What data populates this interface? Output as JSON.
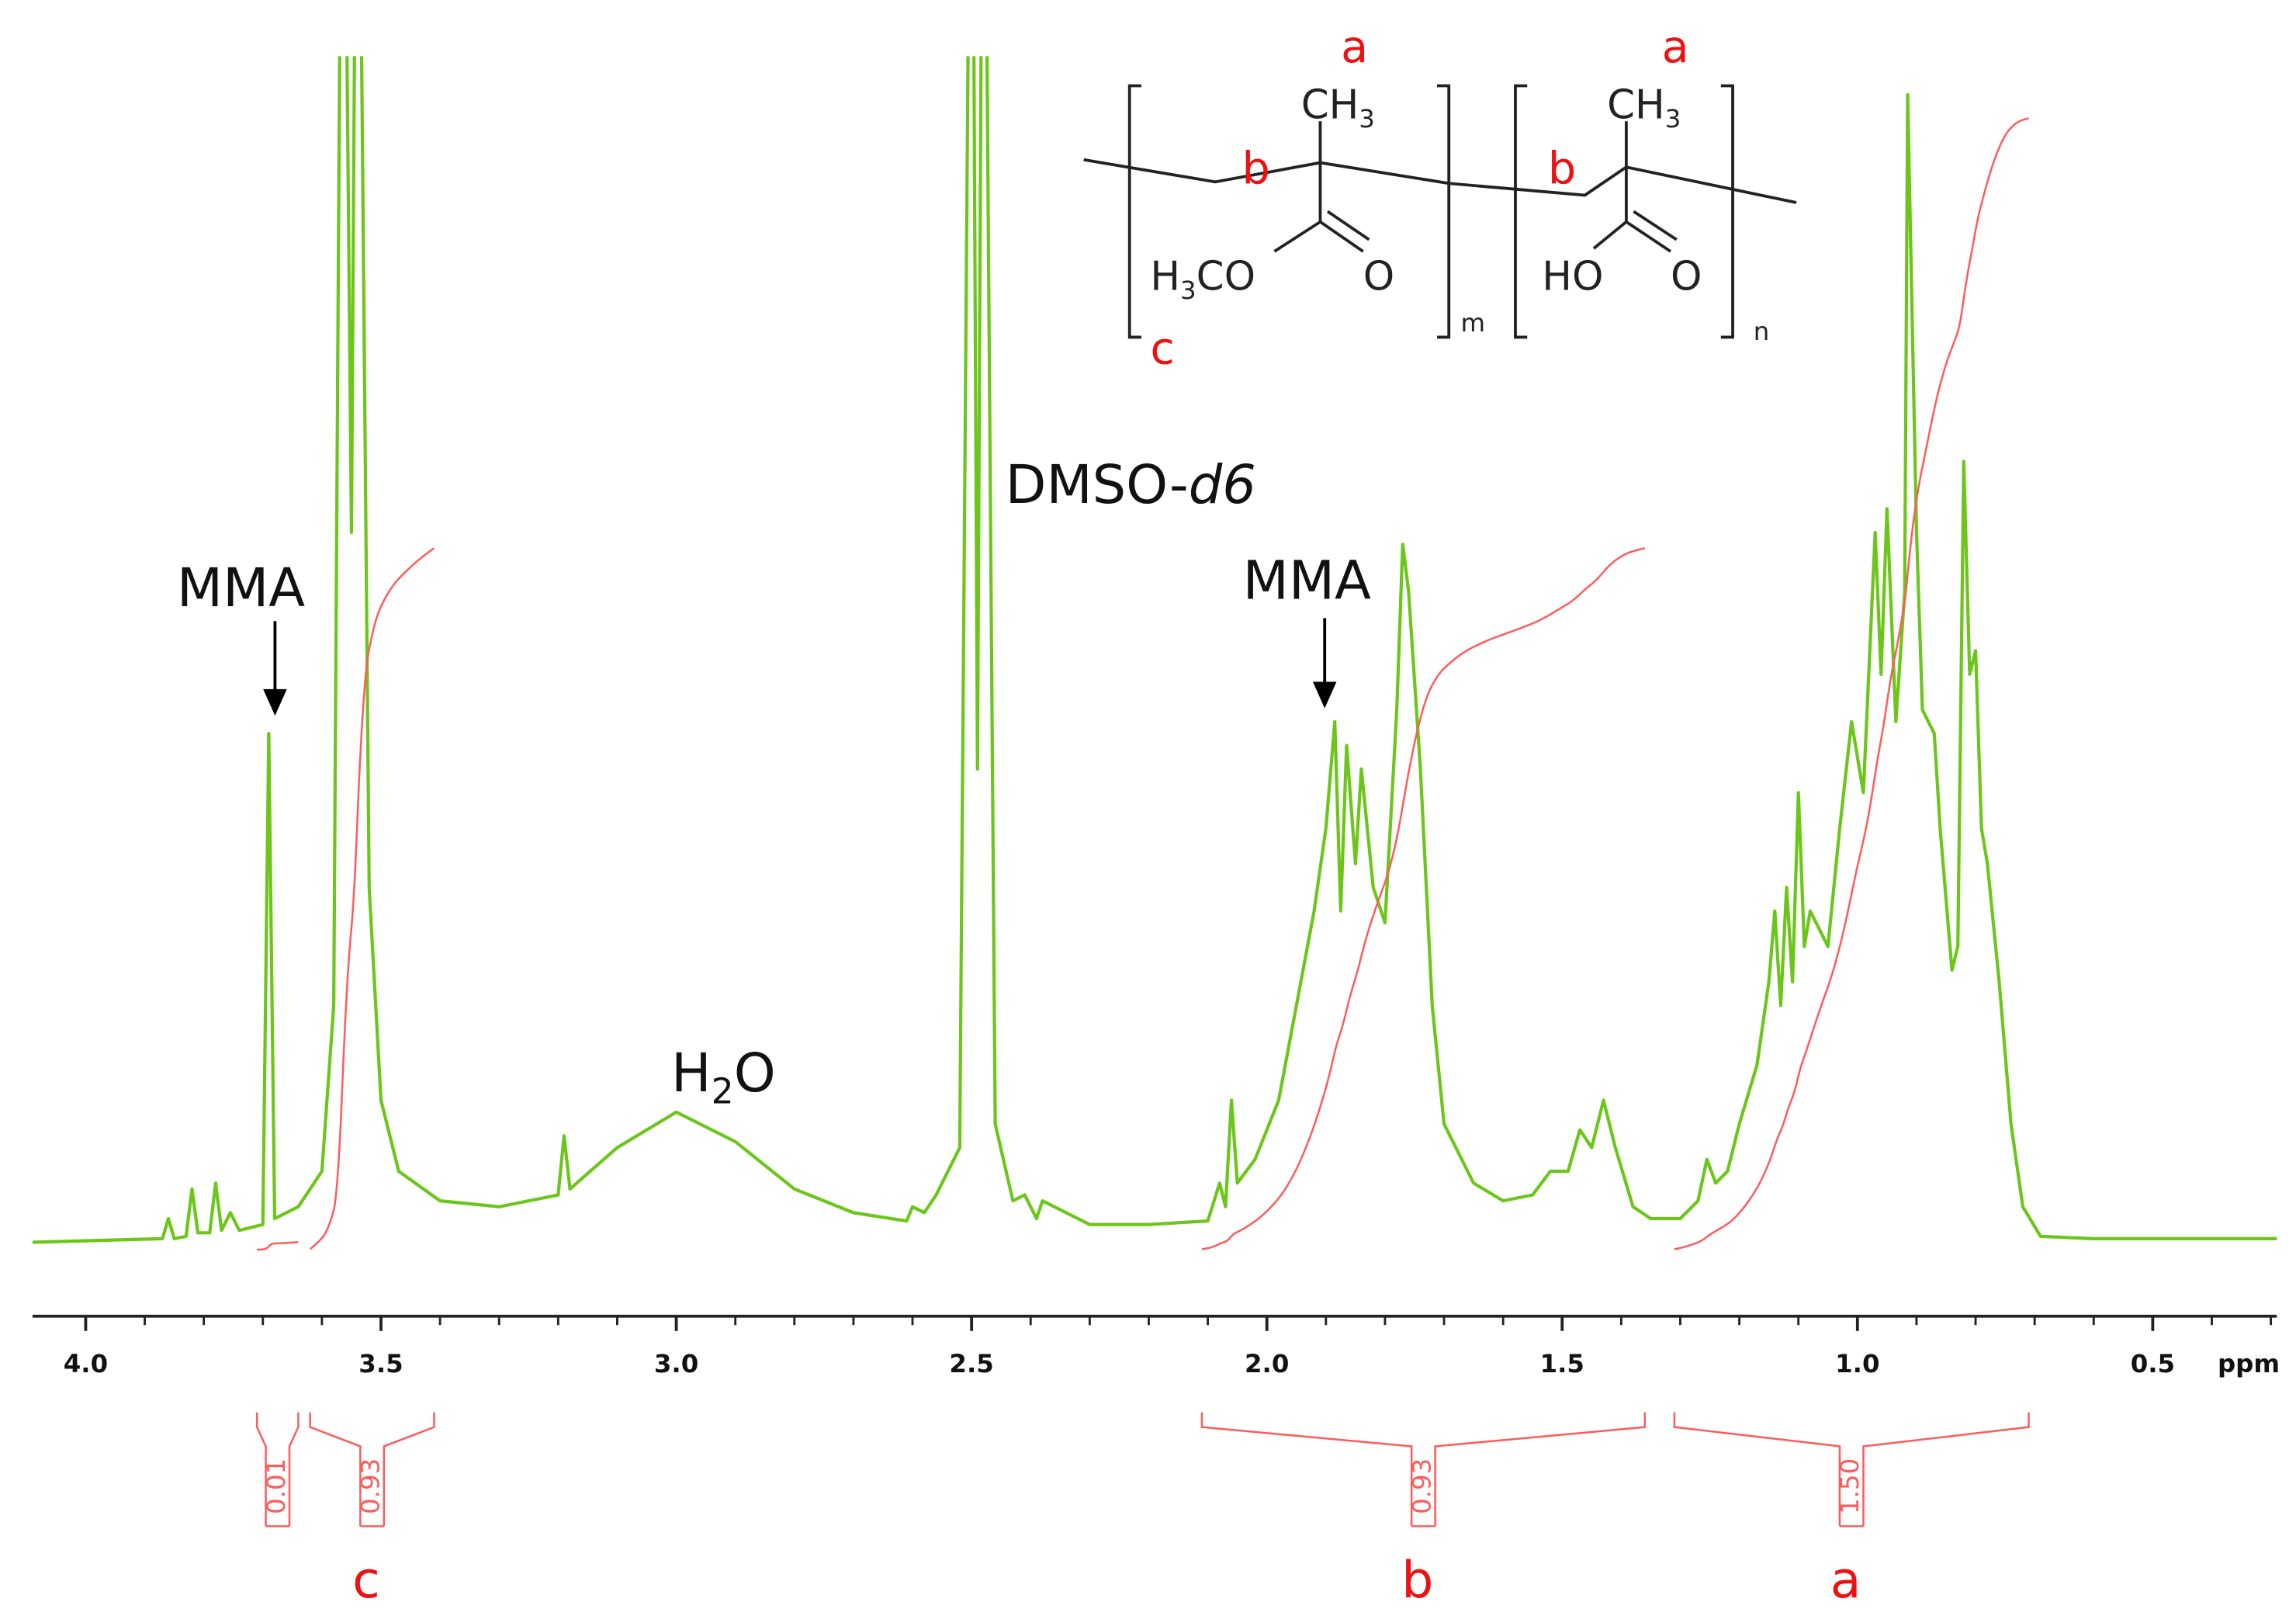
{
  "chart_data": {
    "type": "line",
    "color": "#6cc61a",
    "integral_color": "#ff5a5a",
    "x_label": "ppm",
    "xlim": [
      4.09,
      0.29
    ],
    "ylim": [
      0,
      100
    ],
    "xticks": [
      {
        "value": 4,
        "label": "4.0"
      },
      3.5,
      {
        "value": 3,
        "label": "3.0"
      },
      2.5,
      {
        "value": 2,
        "label": "2.0"
      },
      1.5,
      {
        "value": 1,
        "label": "1.0"
      },
      0.5
    ],
    "xminorticks": [
      4.0,
      3.9,
      3.8,
      3.7,
      3.6,
      3.5,
      3.4,
      3.3,
      3.2,
      3.1,
      3.0,
      2.9,
      2.8,
      2.7,
      2.6,
      2.5,
      2.4,
      2.3,
      2.2,
      2.1,
      2.0,
      1.9,
      1.8,
      1.7,
      1.6,
      1.5,
      1.4,
      1.3,
      1.2,
      1.1,
      1.0,
      0.9,
      0.8,
      0.7,
      0.6,
      0.5,
      0.4,
      0.3
    ],
    "x": [
      4.09,
      3.87,
      3.86,
      3.85,
      3.83,
      3.82,
      3.81,
      3.79,
      3.78,
      3.77,
      3.755,
      3.74,
      3.7,
      3.69,
      3.68,
      3.64,
      3.6,
      3.58,
      3.565,
      3.55,
      3.54,
      3.52,
      3.5,
      3.47,
      3.4,
      3.3,
      3.2,
      3.19,
      3.18,
      3.1,
      3.0,
      2.9,
      2.8,
      2.7,
      2.61,
      2.6,
      2.58,
      2.56,
      2.52,
      2.5,
      2.49,
      2.48,
      2.46,
      2.43,
      2.41,
      2.39,
      2.38,
      2.3,
      2.2,
      2.1,
      2.08,
      2.07,
      2.06,
      2.05,
      2.02,
      1.98,
      1.95,
      1.92,
      1.9,
      1.885,
      1.875,
      1.865,
      1.85,
      1.84,
      1.82,
      1.8,
      1.78,
      1.77,
      1.76,
      1.74,
      1.72,
      1.7,
      1.65,
      1.6,
      1.55,
      1.52,
      1.49,
      1.47,
      1.45,
      1.43,
      1.41,
      1.38,
      1.35,
      1.3,
      1.27,
      1.255,
      1.24,
      1.22,
      1.2,
      1.17,
      1.15,
      1.14,
      1.13,
      1.12,
      1.11,
      1.1,
      1.09,
      1.08,
      1.07,
      1.05,
      1.03,
      1.01,
      0.99,
      0.97,
      0.96,
      0.95,
      0.935,
      0.92,
      0.915,
      0.9,
      0.89,
      0.87,
      0.86,
      0.84,
      0.83,
      0.82,
      0.81,
      0.8,
      0.79,
      0.78,
      0.76,
      0.74,
      0.72,
      0.69,
      0.6,
      0.29
    ],
    "values": [
      0,
      0.3,
      2,
      0.3,
      0.5,
      4.5,
      0.8,
      0.8,
      5,
      1,
      2.5,
      1,
      1.5,
      43,
      2,
      3,
      6,
      20,
      140,
      60,
      140,
      30,
      12,
      6,
      3.5,
      3,
      4,
      9,
      4.5,
      8,
      11,
      8.5,
      4.5,
      2.5,
      1.8,
      3,
      2.5,
      4,
      8,
      140,
      40,
      140,
      10,
      3.5,
      4,
      2,
      3.5,
      1.5,
      1.5,
      1.8,
      5,
      3,
      12,
      5,
      7,
      12,
      20,
      28,
      35,
      44,
      28,
      42,
      32,
      40,
      30,
      27,
      45,
      59,
      55,
      40,
      20,
      10,
      5,
      3.5,
      4,
      6,
      6,
      9.5,
      8,
      12,
      8,
      3,
      2,
      2,
      3.5,
      7,
      5,
      6,
      10,
      15,
      22,
      28,
      20,
      30,
      22,
      38,
      25,
      28,
      27,
      25,
      35,
      44,
      38,
      60,
      48,
      62,
      44,
      55,
      97,
      60,
      45,
      43,
      35,
      23,
      25,
      66,
      48,
      50,
      35,
      32,
      22,
      10,
      3,
      0.5,
      0.3,
      0.3
    ],
    "integrals": [
      {
        "from": 3.71,
        "to": 3.64,
        "value": 0.01
      },
      {
        "from": 3.62,
        "to": 3.41,
        "value": 0.93,
        "label": "c"
      },
      {
        "from": 2.11,
        "to": 1.36,
        "value": 0.93,
        "label": "b"
      },
      {
        "from": 1.31,
        "to": 0.71,
        "value": 1.5,
        "value_label": "1.50",
        "label": "a"
      }
    ],
    "annotations": {
      "mma": [
        "MMA",
        "MMA"
      ],
      "water": [
        "H",
        "2",
        "O"
      ],
      "solvent": [
        "DMSO-",
        "d6"
      ]
    },
    "structure": {
      "site_labels": [
        "a",
        "b",
        "c",
        "a",
        "b"
      ],
      "units": [
        {
          "methyl": [
            "CH",
            "3"
          ],
          "ester": [
            "H",
            "3",
            "CO"
          ],
          "carbonyl_o": "O",
          "repeat": "m"
        },
        {
          "methyl": [
            "CH",
            "3"
          ],
          "acid": "HO",
          "carbonyl_o": "O",
          "repeat": "n"
        }
      ]
    }
  }
}
